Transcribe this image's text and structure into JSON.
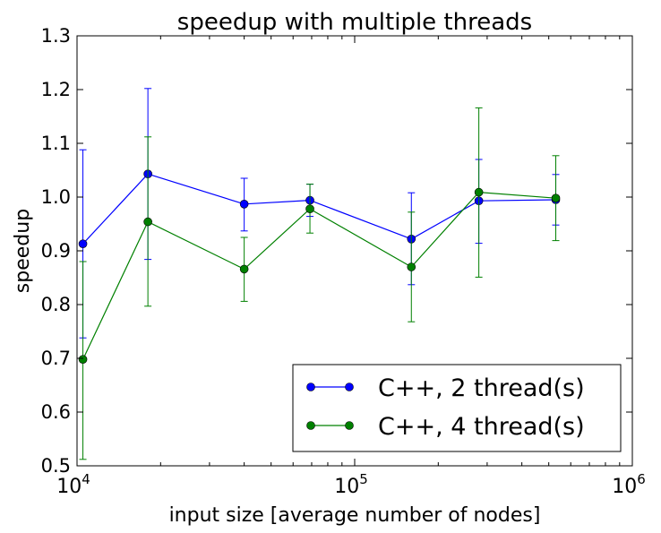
{
  "chart_data": {
    "type": "line",
    "title": "speedup with multiple threads",
    "xlabel": "input size [average number of nodes]",
    "ylabel": "speedup",
    "x_scale": "log",
    "xlim": [
      10000,
      1000000
    ],
    "ylim": [
      0.5,
      1.3
    ],
    "grid": false,
    "legend_position": "lower-right",
    "x_ticks": [
      {
        "value": 10000,
        "base": "10",
        "exp": "4"
      },
      {
        "value": 100000,
        "base": "10",
        "exp": "5"
      },
      {
        "value": 1000000,
        "base": "10",
        "exp": "6"
      }
    ],
    "y_ticks": [
      "0.5",
      "0.6",
      "0.7",
      "0.8",
      "0.9",
      "1.0",
      "1.1",
      "1.2",
      "1.3"
    ],
    "series": [
      {
        "name": "C++, 2 thread(s)",
        "color": "#0000ff",
        "points": [
          {
            "x": 10500,
            "y": 0.913,
            "yerr_low": 0.738,
            "yerr_high": 1.088
          },
          {
            "x": 18000,
            "y": 1.043,
            "yerr_low": 0.884,
            "yerr_high": 1.202
          },
          {
            "x": 40000,
            "y": 0.987,
            "yerr_low": 0.937,
            "yerr_high": 1.035
          },
          {
            "x": 69000,
            "y": 0.994,
            "yerr_low": 0.964,
            "yerr_high": 1.024
          },
          {
            "x": 160000,
            "y": 0.922,
            "yerr_low": 0.837,
            "yerr_high": 1.008
          },
          {
            "x": 280000,
            "y": 0.993,
            "yerr_low": 0.914,
            "yerr_high": 1.07
          },
          {
            "x": 530000,
            "y": 0.995,
            "yerr_low": 0.948,
            "yerr_high": 1.042
          }
        ]
      },
      {
        "name": "C++, 4 thread(s)",
        "color": "#008000",
        "points": [
          {
            "x": 10500,
            "y": 0.698,
            "yerr_low": 0.512,
            "yerr_high": 0.88
          },
          {
            "x": 18000,
            "y": 0.954,
            "yerr_low": 0.797,
            "yerr_high": 1.112
          },
          {
            "x": 40000,
            "y": 0.866,
            "yerr_low": 0.806,
            "yerr_high": 0.925
          },
          {
            "x": 69000,
            "y": 0.978,
            "yerr_low": 0.933,
            "yerr_high": 1.024
          },
          {
            "x": 160000,
            "y": 0.87,
            "yerr_low": 0.768,
            "yerr_high": 0.972
          },
          {
            "x": 280000,
            "y": 1.009,
            "yerr_low": 0.851,
            "yerr_high": 1.166
          },
          {
            "x": 530000,
            "y": 0.998,
            "yerr_low": 0.919,
            "yerr_high": 1.077
          }
        ]
      }
    ]
  }
}
